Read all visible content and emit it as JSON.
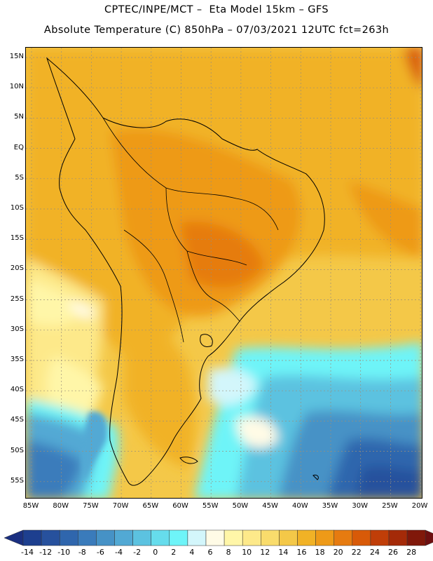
{
  "header": {
    "line1": "CPTEC/INPE/MCT –  Eta Model 15km – GFS",
    "line2": "Absolute Temperature (C) 850hPa – 07/03/2021 12UTC fct=263h"
  },
  "map": {
    "lat_labels": [
      "15N",
      "10N",
      "5N",
      "EQ",
      "5S",
      "10S",
      "15S",
      "20S",
      "25S",
      "30S",
      "35S",
      "40S",
      "45S",
      "50S",
      "55S"
    ],
    "lon_labels": [
      "85W",
      "80W",
      "75W",
      "70W",
      "65W",
      "60W",
      "55W",
      "50W",
      "45W",
      "40W",
      "35W",
      "30W",
      "25W",
      "20W"
    ]
  },
  "colorbar": {
    "labels": [
      "-14",
      "-12",
      "-10",
      "-8",
      "-6",
      "-4",
      "-2",
      "0",
      "2",
      "4",
      "6",
      "8",
      "10",
      "12",
      "14",
      "16",
      "18",
      "20",
      "22",
      "24",
      "26",
      "28"
    ],
    "colors": [
      "#1d3f8f",
      "#27519d",
      "#2f66ad",
      "#3a7bbb",
      "#4692c6",
      "#52a9d4",
      "#5cc2e0",
      "#66dcec",
      "#6ef4f8",
      "#d3f6fb",
      "#fffbe6",
      "#fff6a8",
      "#fde98a",
      "#f9dc6c",
      "#f4c848",
      "#f1b226",
      "#ee9a18",
      "#e67b10",
      "#d85a08",
      "#c03e08",
      "#a42a08",
      "#80180a"
    ],
    "low_color": "#1a2f80",
    "high_color": "#6e0f10"
  }
}
